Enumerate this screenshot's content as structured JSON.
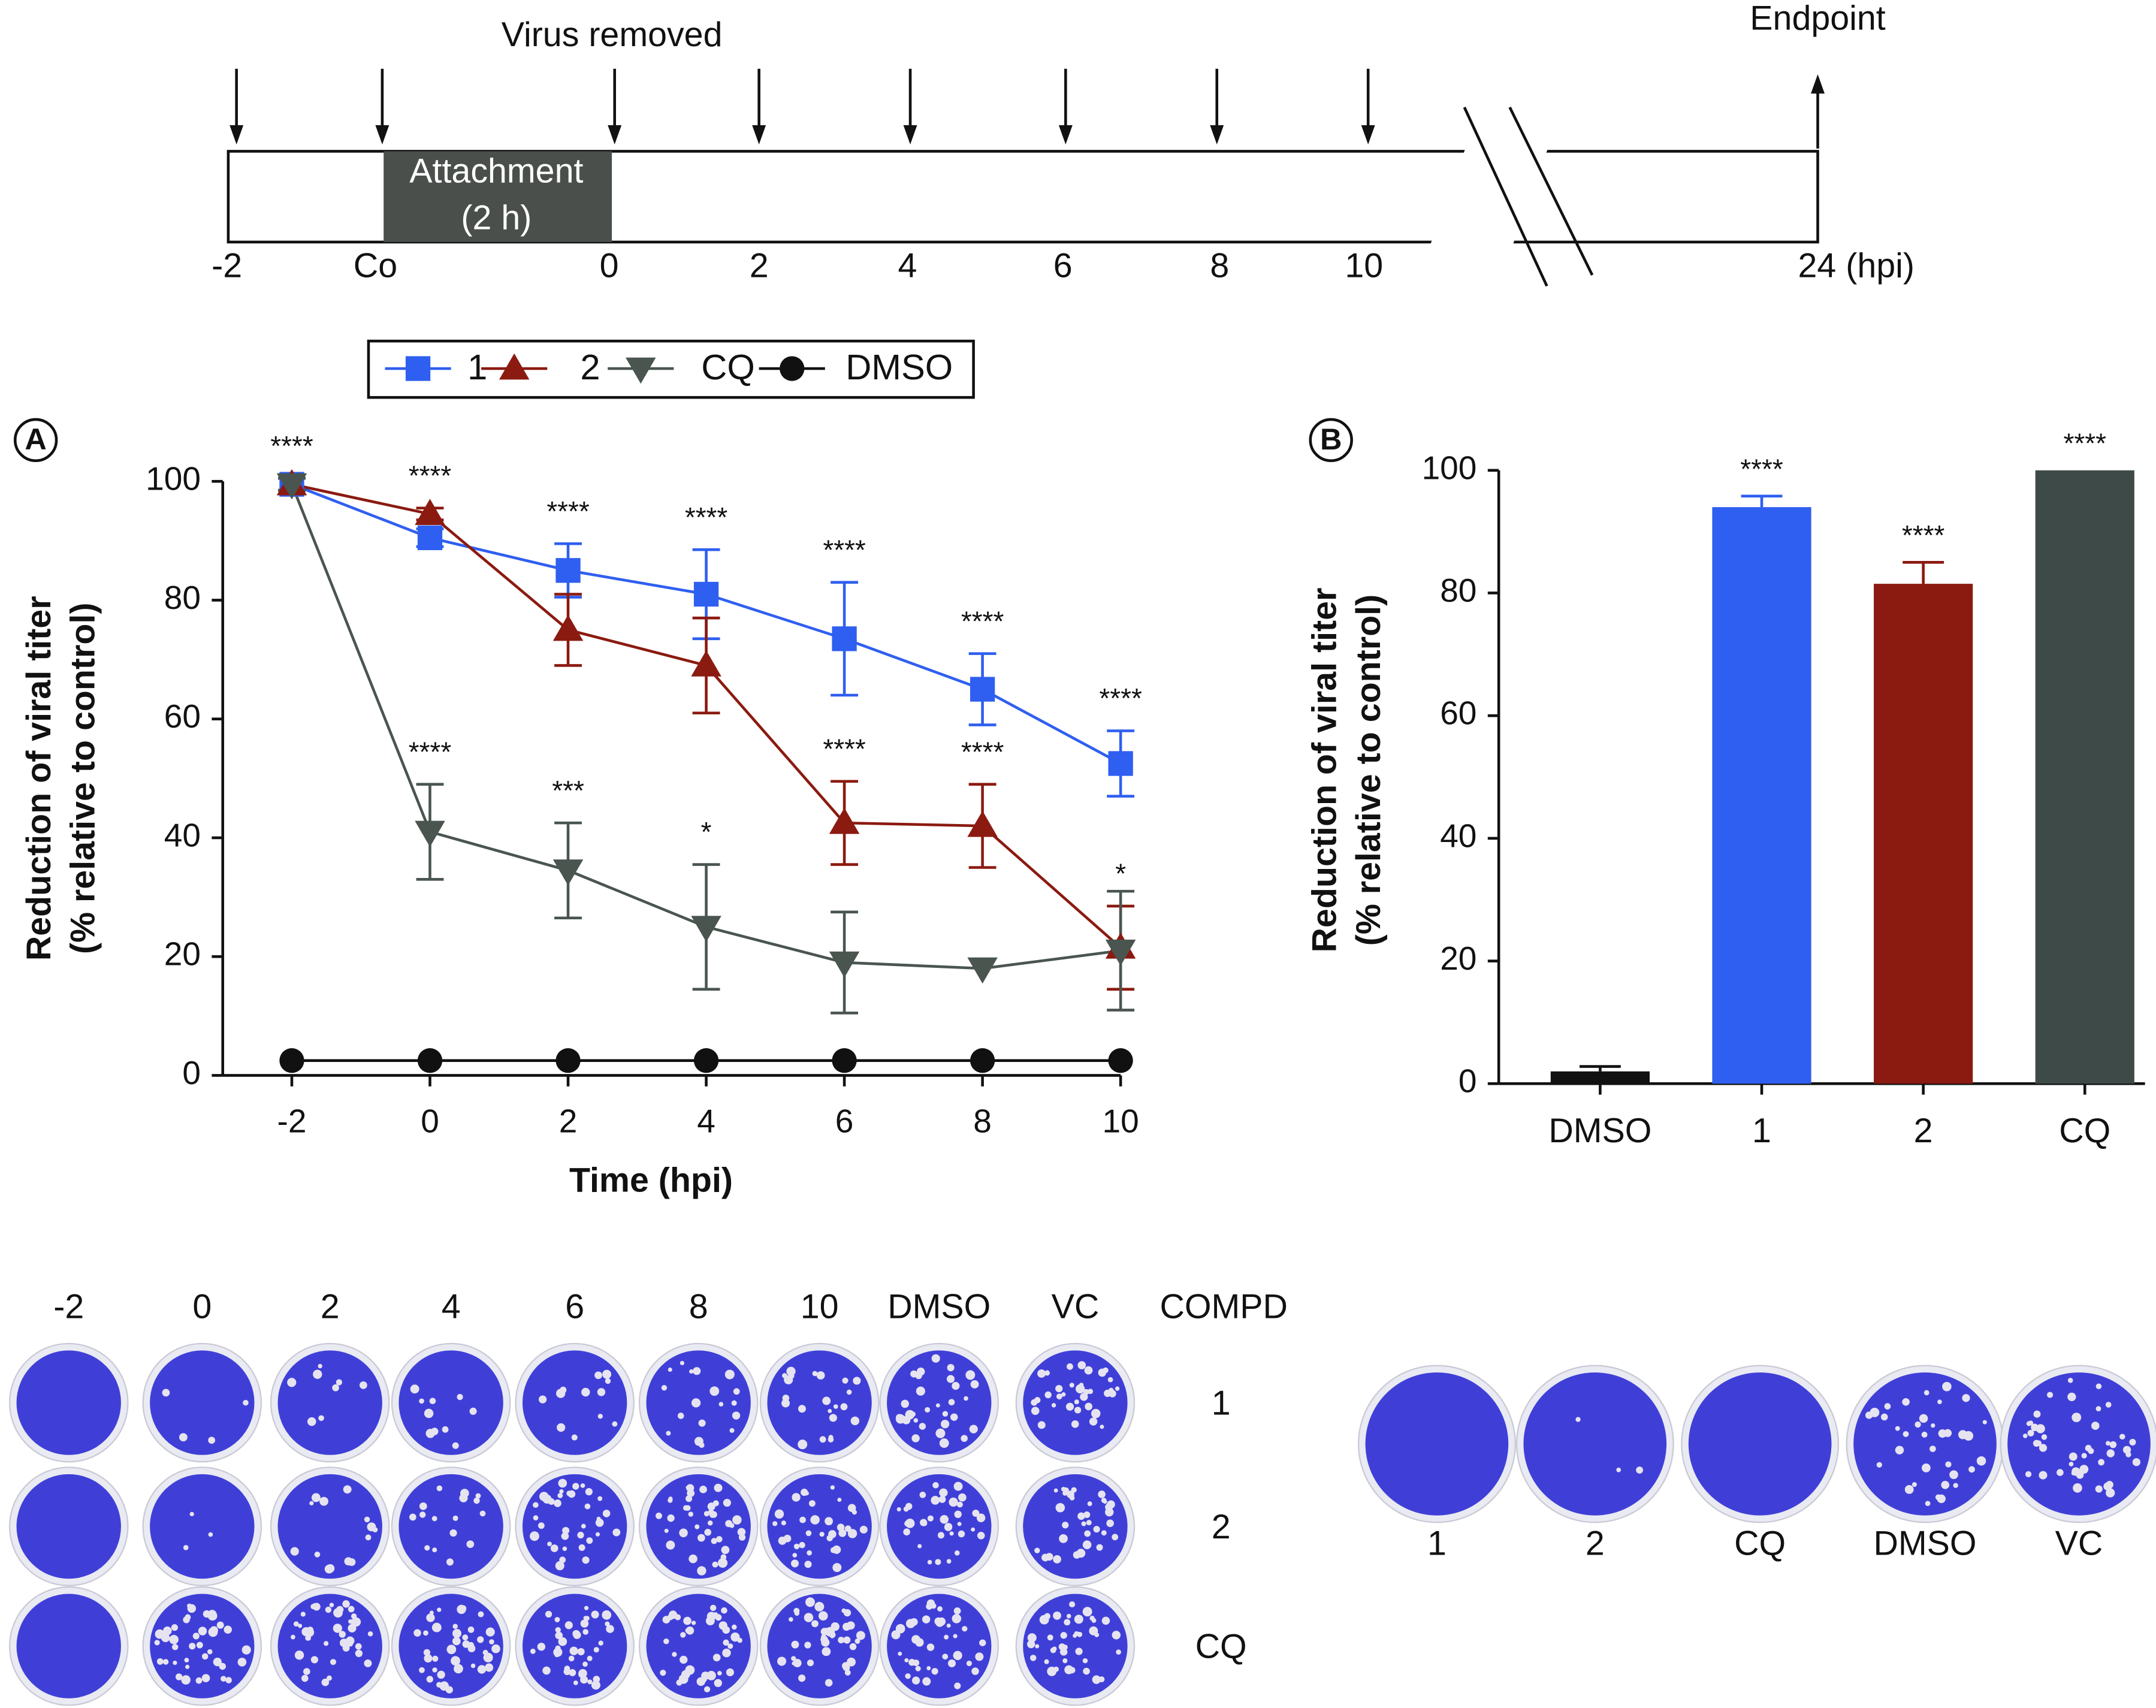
{
  "timeline": {
    "labels": [
      "-2",
      "Co",
      "0",
      "2",
      "4",
      "6",
      "8",
      "10",
      "24 (hpi)"
    ],
    "attachment": [
      "Attachment",
      "(2 h)"
    ],
    "virus_removed": "Virus removed",
    "endpoint": "Endpoint"
  },
  "chart_data": [
    {
      "type": "line",
      "panel": "A",
      "xlabel": "Time (hpi)",
      "ylabel": [
        "Reduction of viral titer",
        "(% relative to control)"
      ],
      "x": [
        -2,
        0,
        2,
        4,
        6,
        8,
        10
      ],
      "xlim": [
        -3,
        10
      ],
      "xticks": [
        -2,
        0,
        2,
        4,
        6,
        8,
        10
      ],
      "ylim": [
        0,
        100
      ],
      "yticks": [
        0,
        20,
        40,
        60,
        80,
        100
      ],
      "grid": false,
      "legend": "top",
      "series": [
        {
          "name": "1",
          "color": "#2f5ff0",
          "marker": "square",
          "values": [
            99.5,
            90.5,
            85,
            81,
            73.5,
            65,
            52.5
          ],
          "errors": [
            1,
            1.5,
            4.5,
            7.5,
            9.5,
            6,
            5.5
          ],
          "significance": [
            "****",
            null,
            "****",
            "****",
            "****",
            "****",
            "****"
          ]
        },
        {
          "name": "2",
          "color": "#8b1a10",
          "marker": "triangle-up",
          "values": [
            99.5,
            94.5,
            75,
            69,
            42.5,
            42,
            21.5
          ],
          "errors": [
            1,
            1,
            6,
            8,
            7,
            7,
            7
          ],
          "significance": [
            null,
            "****",
            null,
            null,
            "****",
            "****",
            "*"
          ]
        },
        {
          "name": "CQ",
          "color": "#4a5550",
          "marker": "triangle-down",
          "values": [
            99.5,
            41,
            34.5,
            25,
            19,
            18,
            21
          ],
          "errors": [
            1,
            8,
            8,
            10.5,
            8.5,
            0,
            10
          ],
          "significance": [
            null,
            "****",
            "***",
            "*",
            null,
            null,
            null
          ]
        },
        {
          "name": "DMSO",
          "color": "#111111",
          "marker": "circle",
          "values": [
            2.5,
            2.5,
            2.5,
            2.5,
            2.5,
            2.5,
            2.5
          ],
          "errors": [
            0,
            0,
            0,
            0,
            0,
            0,
            0
          ],
          "significance": [
            null,
            null,
            null,
            null,
            null,
            null,
            null
          ]
        }
      ]
    },
    {
      "type": "bar",
      "panel": "B",
      "ylabel": [
        "Reduction of viral titer",
        "(% relative to control)"
      ],
      "categories": [
        "DMSO",
        "1",
        "2",
        "CQ"
      ],
      "values": [
        2,
        94,
        81.5,
        100
      ],
      "errors": [
        0.8,
        1.8,
        3.5,
        0
      ],
      "colors": [
        "#111111",
        "#2f5ff0",
        "#8b1a10",
        "#3d4a48"
      ],
      "significance": [
        null,
        "****",
        "****",
        "****"
      ],
      "ylim": [
        0,
        100
      ],
      "yticks": [
        0,
        20,
        40,
        60,
        80,
        100
      ],
      "grid": false
    }
  ],
  "plates": {
    "left": {
      "columns": [
        "-2",
        "0",
        "2",
        "4",
        "6",
        "8",
        "10",
        "DMSO",
        "VC"
      ],
      "header": "COMPD",
      "rows": [
        "1",
        "2",
        "CQ"
      ]
    },
    "right": {
      "labels": [
        "1",
        "2",
        "CQ",
        "DMSO",
        "VC"
      ]
    }
  }
}
